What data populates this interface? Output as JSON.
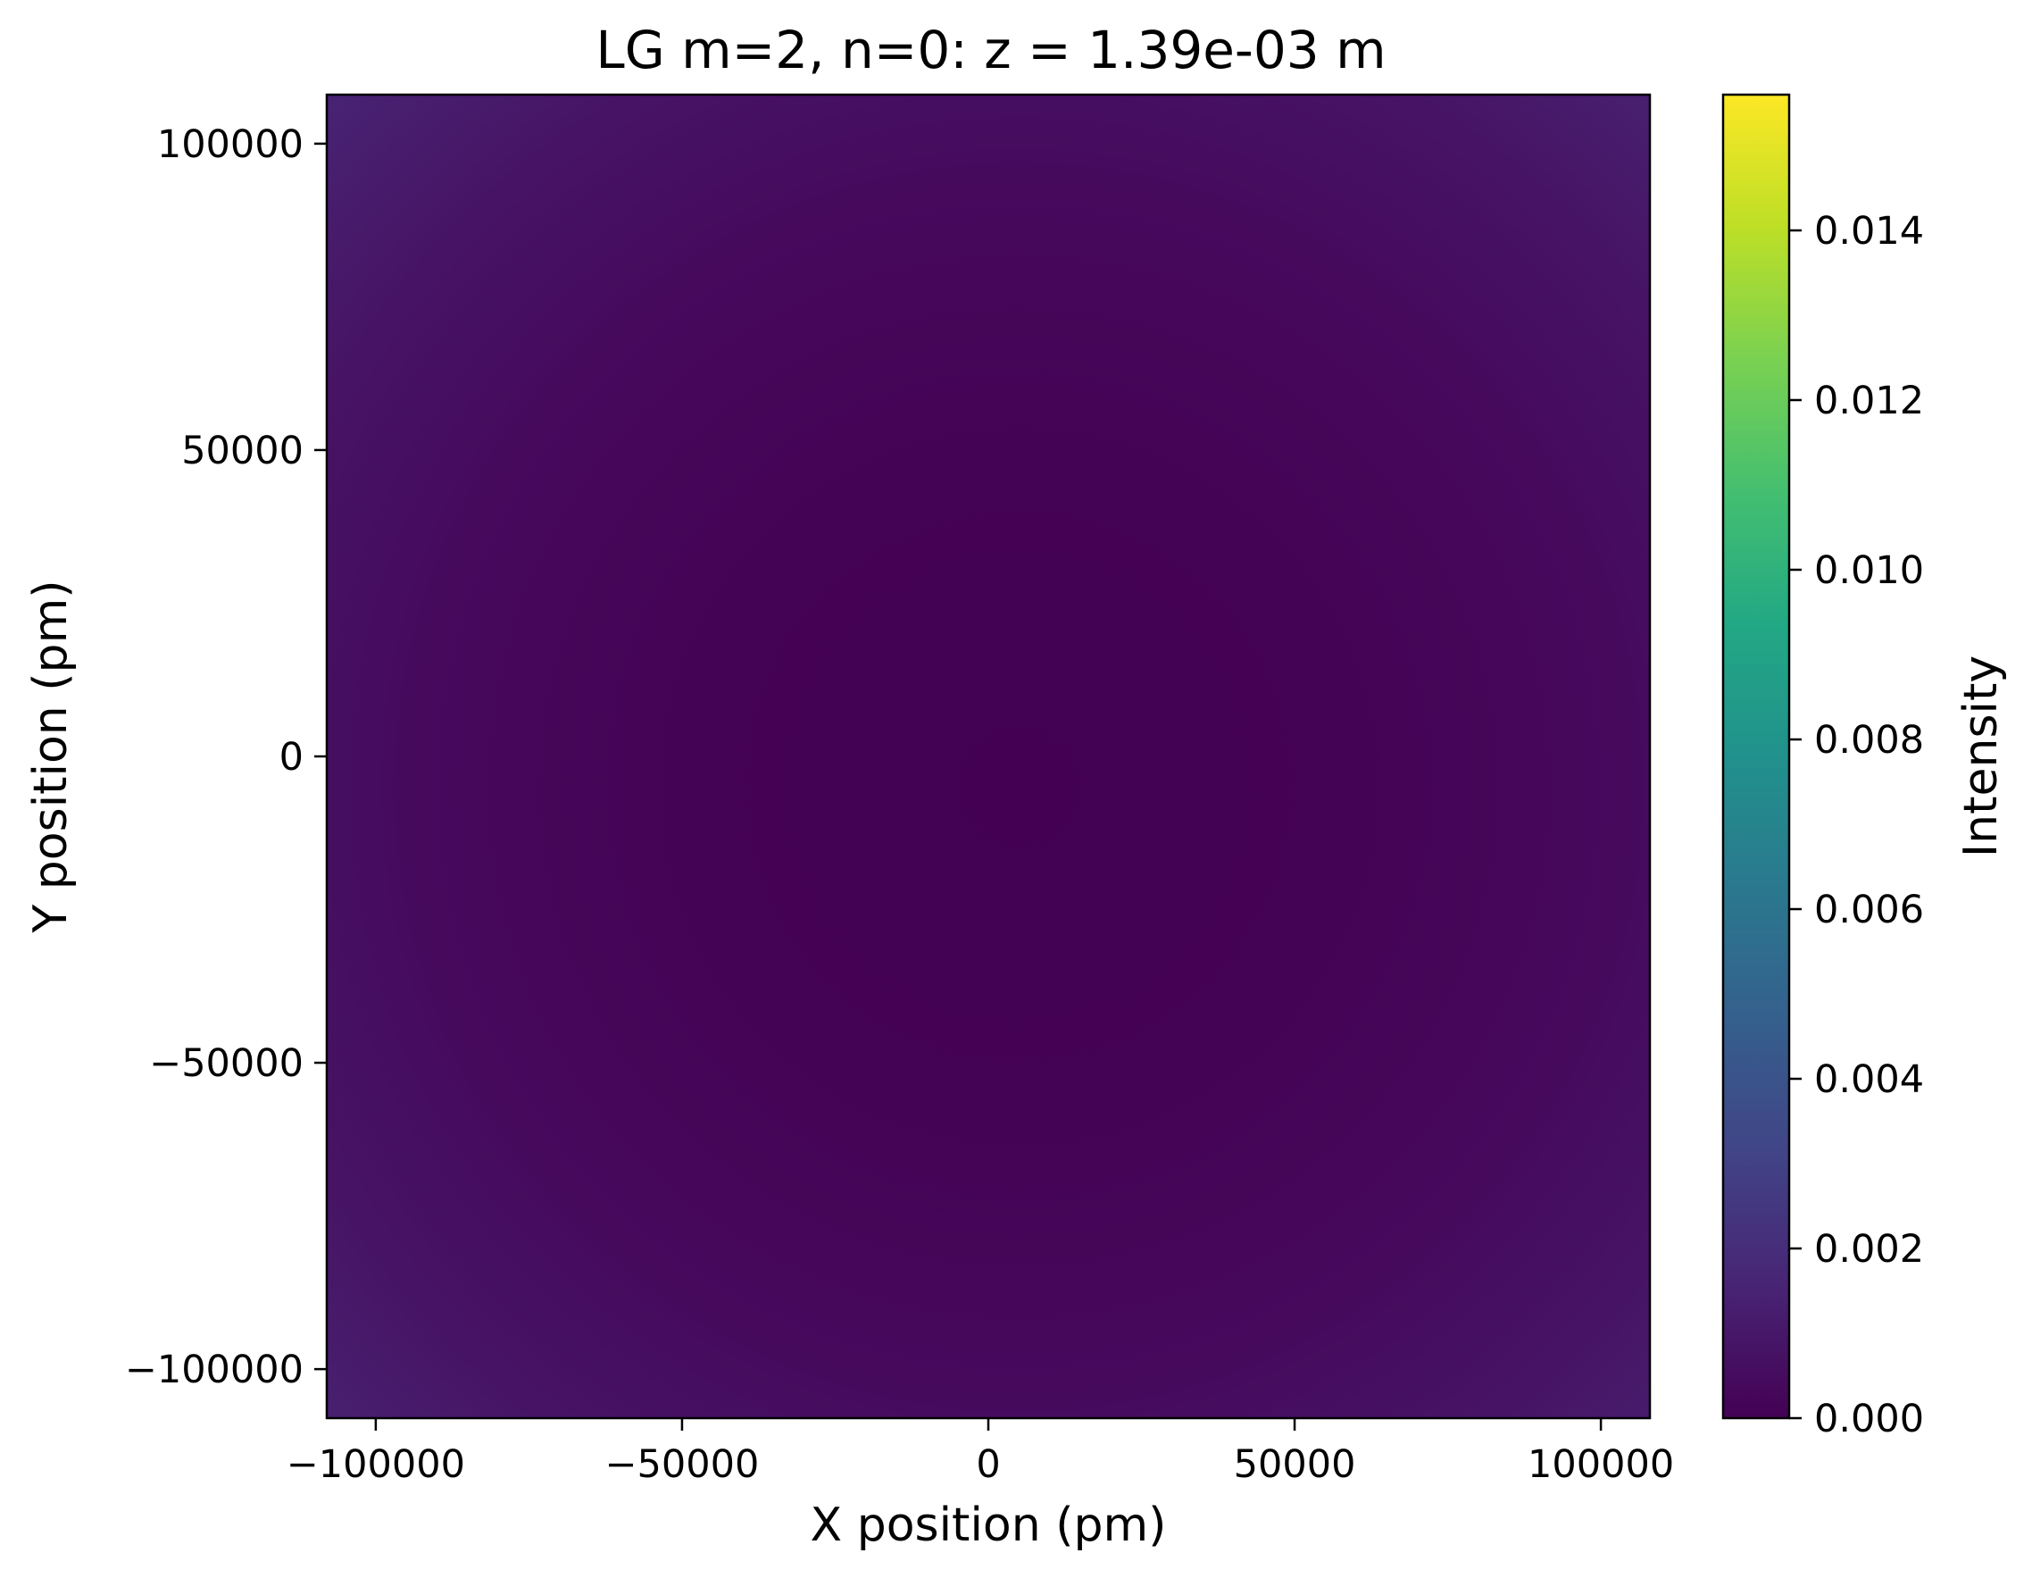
{
  "chart_data": {
    "type": "heatmap",
    "title": "LG m=2, n=0: z = 1.39e-03 m",
    "xlabel": "X position (pm)",
    "ylabel": "Y position (pm)",
    "xlim": [
      -108000,
      108000
    ],
    "ylim": [
      -108000,
      108000
    ],
    "x_ticks": [
      -100000,
      -50000,
      0,
      50000,
      100000
    ],
    "x_tick_labels": [
      "−100000",
      "−50000",
      "0",
      "50000",
      "100000"
    ],
    "y_ticks": [
      -100000,
      -50000,
      0,
      50000,
      100000
    ],
    "y_tick_labels": [
      "−100000",
      "−50000",
      "0",
      "50000",
      "100000"
    ],
    "colormap": "viridis",
    "grid": false,
    "colorbar": {
      "label": "Intensity",
      "range": [
        0,
        0.0156
      ],
      "ticks": [
        0.0,
        0.002,
        0.004,
        0.006,
        0.008,
        0.01,
        0.012,
        0.014
      ],
      "tick_labels": [
        "0.000",
        "0.002",
        "0.004",
        "0.006",
        "0.008",
        "0.010",
        "0.012",
        "0.014"
      ]
    },
    "field": {
      "description_of_values": "intensity low near center, rising toward corners",
      "center_intensity": 0.0,
      "corner_intensity": 0.0025,
      "beam_center": [
        5000,
        -5000
      ]
    }
  }
}
